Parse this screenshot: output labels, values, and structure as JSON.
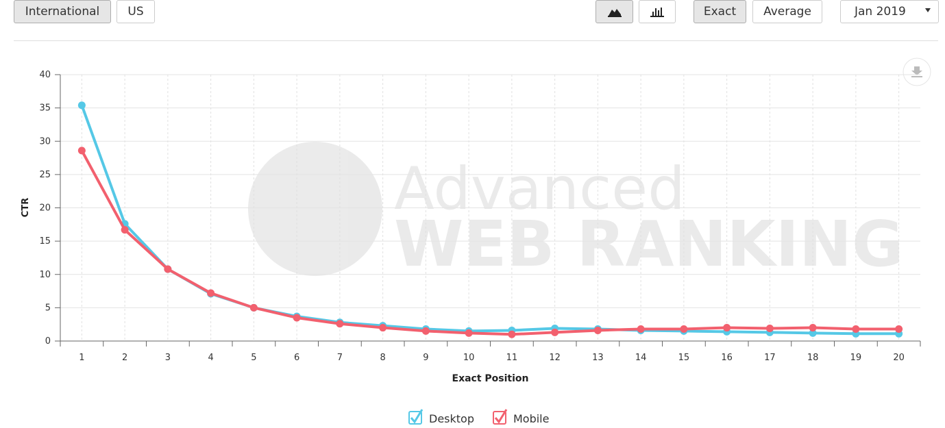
{
  "toolbar": {
    "region_buttons": [
      "International",
      "US"
    ],
    "mode_buttons": [
      "Exact",
      "Average"
    ],
    "date_select": "Jan 2019"
  },
  "chart_data": {
    "type": "line",
    "watermark": [
      "Advanced",
      "WEB RANKING"
    ],
    "x_label": "Exact Position",
    "y_label": "CTR",
    "categories": [
      "1",
      "2",
      "3",
      "4",
      "5",
      "6",
      "7",
      "8",
      "9",
      "10",
      "11",
      "12",
      "13",
      "14",
      "15",
      "16",
      "17",
      "18",
      "19",
      "20"
    ],
    "series": [
      {
        "name": "Desktop",
        "color": "#55c8e6",
        "values": [
          35.4,
          17.6,
          10.8,
          7.1,
          5.0,
          3.7,
          2.8,
          2.3,
          1.8,
          1.5,
          1.6,
          1.9,
          1.8,
          1.6,
          1.5,
          1.4,
          1.3,
          1.2,
          1.1,
          1.1
        ]
      },
      {
        "name": "Mobile",
        "color": "#f2606e",
        "values": [
          28.6,
          16.7,
          10.8,
          7.2,
          5.0,
          3.5,
          2.6,
          2.0,
          1.5,
          1.2,
          1.0,
          1.3,
          1.6,
          1.8,
          1.8,
          2.0,
          1.9,
          2.0,
          1.8,
          1.8
        ]
      }
    ],
    "ylim": [
      0,
      40
    ],
    "yticks": [
      0,
      5,
      10,
      15,
      20,
      25,
      30,
      35,
      40
    ],
    "grid": true
  }
}
